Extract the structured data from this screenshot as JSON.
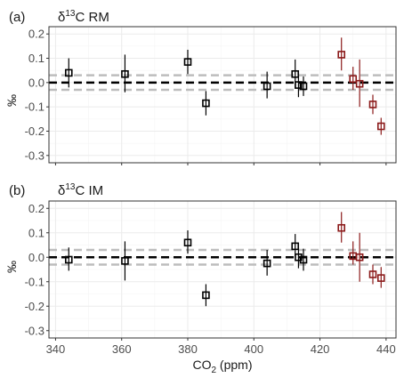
{
  "chart_data": {
    "type": "scatter",
    "xlabel": "CO2 (ppm)",
    "ylabel": "‰",
    "xlim": [
      338,
      443
    ],
    "ylim": [
      -0.33,
      0.23
    ],
    "xticks": [
      340,
      360,
      380,
      400,
      420,
      440
    ],
    "yticks": [
      0.2,
      0.1,
      0.0,
      -0.1,
      -0.2,
      -0.3
    ],
    "ytick_labels": [
      "0.2",
      "0.1",
      "0.0",
      "-0.1",
      "-0.2",
      "-0.3"
    ],
    "xtick_labels": [
      "340",
      "360",
      "380",
      "400",
      "420",
      "440"
    ],
    "reference_lines": {
      "zero": 0.0,
      "band": [
        0.03,
        -0.03
      ]
    },
    "colors": {
      "black_series": "#000000",
      "red_series": "#8b1a1a",
      "band": "#bdbdbd",
      "grid": "#ebebeb"
    },
    "panels": [
      {
        "tag": "(a)",
        "title": "δ13C RM",
        "points": [
          {
            "x": 344,
            "y": 0.04,
            "lo": -0.02,
            "hi": 0.1,
            "group": "black"
          },
          {
            "x": 361,
            "y": 0.035,
            "lo": -0.04,
            "hi": 0.115,
            "group": "black"
          },
          {
            "x": 380,
            "y": 0.085,
            "lo": 0.035,
            "hi": 0.135,
            "group": "black"
          },
          {
            "x": 385.5,
            "y": -0.085,
            "lo": -0.135,
            "hi": -0.035,
            "group": "black"
          },
          {
            "x": 404,
            "y": -0.015,
            "lo": -0.065,
            "hi": 0.045,
            "group": "black"
          },
          {
            "x": 412.5,
            "y": 0.035,
            "lo": -0.025,
            "hi": 0.095,
            "group": "black"
          },
          {
            "x": 413.5,
            "y": -0.01,
            "lo": -0.06,
            "hi": 0.04,
            "group": "black"
          },
          {
            "x": 415,
            "y": -0.015,
            "lo": -0.055,
            "hi": 0.025,
            "group": "black"
          },
          {
            "x": 426.5,
            "y": 0.115,
            "lo": 0.05,
            "hi": 0.185,
            "group": "red"
          },
          {
            "x": 430,
            "y": 0.015,
            "lo": -0.03,
            "hi": 0.065,
            "group": "red"
          },
          {
            "x": 432,
            "y": -0.005,
            "lo": -0.1,
            "hi": 0.095,
            "group": "red"
          },
          {
            "x": 436,
            "y": -0.09,
            "lo": -0.13,
            "hi": -0.05,
            "group": "red"
          },
          {
            "x": 438.5,
            "y": -0.18,
            "lo": -0.215,
            "hi": -0.145,
            "group": "red"
          }
        ]
      },
      {
        "tag": "(b)",
        "title": "δ13C IM",
        "points": [
          {
            "x": 344,
            "y": -0.01,
            "lo": -0.055,
            "hi": 0.04,
            "group": "black"
          },
          {
            "x": 361,
            "y": -0.015,
            "lo": -0.095,
            "hi": 0.065,
            "group": "black"
          },
          {
            "x": 380,
            "y": 0.06,
            "lo": 0.015,
            "hi": 0.11,
            "group": "black"
          },
          {
            "x": 385.5,
            "y": -0.155,
            "lo": -0.2,
            "hi": -0.11,
            "group": "black"
          },
          {
            "x": 404,
            "y": -0.025,
            "lo": -0.075,
            "hi": 0.03,
            "group": "black"
          },
          {
            "x": 412.5,
            "y": 0.045,
            "lo": 0.0,
            "hi": 0.095,
            "group": "black"
          },
          {
            "x": 413.5,
            "y": 0.0,
            "lo": -0.045,
            "hi": 0.04,
            "group": "black"
          },
          {
            "x": 415,
            "y": -0.01,
            "lo": -0.055,
            "hi": 0.035,
            "group": "black"
          },
          {
            "x": 426.5,
            "y": 0.12,
            "lo": 0.06,
            "hi": 0.185,
            "group": "red"
          },
          {
            "x": 430,
            "y": 0.005,
            "lo": -0.03,
            "hi": 0.065,
            "group": "red"
          },
          {
            "x": 432,
            "y": 0.0,
            "lo": -0.1,
            "hi": 0.1,
            "group": "red"
          },
          {
            "x": 436,
            "y": -0.07,
            "lo": -0.11,
            "hi": -0.03,
            "group": "red"
          },
          {
            "x": 438.5,
            "y": -0.085,
            "lo": -0.125,
            "hi": -0.04,
            "group": "red"
          }
        ]
      }
    ]
  }
}
